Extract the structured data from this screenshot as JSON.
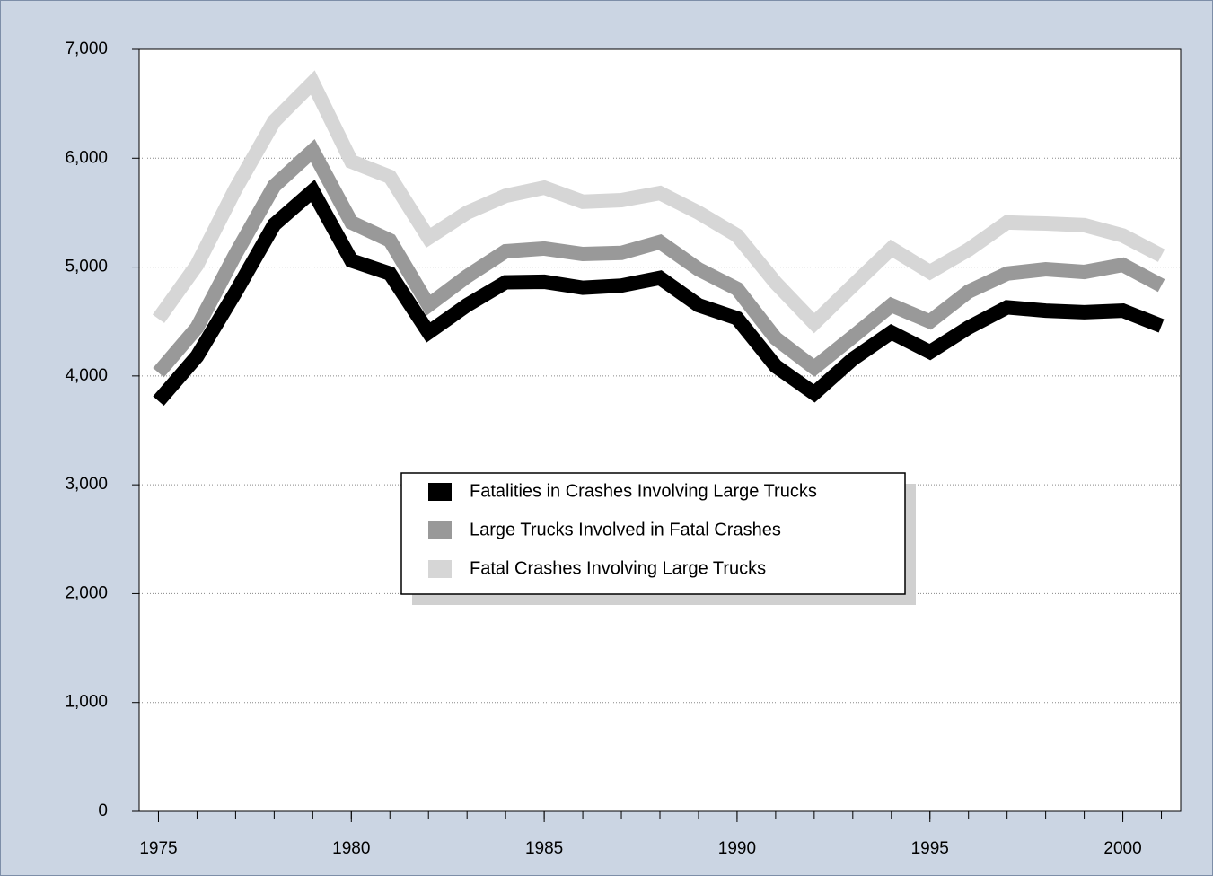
{
  "chart_data": {
    "type": "line",
    "x": [
      1975,
      1976,
      1977,
      1978,
      1979,
      1980,
      1981,
      1982,
      1983,
      1984,
      1985,
      1986,
      1987,
      1988,
      1989,
      1990,
      1991,
      1992,
      1993,
      1994,
      1995,
      1996,
      1997,
      1998,
      1999,
      2000,
      2001
    ],
    "series": [
      {
        "name": "Fatalities in Crashes Involving Large Trucks",
        "color": "#000000",
        "values": [
          3770,
          4180,
          4770,
          5390,
          5700,
          5060,
          4940,
          4400,
          4650,
          4860,
          4865,
          4810,
          4830,
          4900,
          4650,
          4530,
          4090,
          3840,
          4155,
          4400,
          4220,
          4445,
          4630,
          4600,
          4585,
          4600,
          4460
        ]
      },
      {
        "name": "Large Trucks Involved in Fatal Crashes",
        "color": "#999999",
        "values": [
          4030,
          4445,
          5120,
          5745,
          6070,
          5410,
          5245,
          4650,
          4915,
          5145,
          5170,
          5120,
          5130,
          5230,
          4980,
          4800,
          4345,
          4075,
          4360,
          4650,
          4500,
          4775,
          4940,
          4980,
          4955,
          5020,
          4830
        ]
      },
      {
        "name": "Fatal Crashes Involving Large Trucks",
        "color": "#d6d6d6",
        "values": [
          4525,
          5020,
          5720,
          6340,
          6695,
          5970,
          5830,
          5270,
          5500,
          5655,
          5730,
          5600,
          5615,
          5680,
          5500,
          5290,
          4855,
          4485,
          4830,
          5170,
          4955,
          5160,
          5410,
          5400,
          5385,
          5290,
          5105
        ]
      }
    ],
    "xlim": [
      1974.5,
      2001.5
    ],
    "xticks": [
      1975,
      1980,
      1985,
      1990,
      1995,
      2000
    ],
    "xminorticks": [
      1975,
      1976,
      1977,
      1978,
      1979,
      1980,
      1981,
      1982,
      1983,
      1984,
      1985,
      1986,
      1987,
      1988,
      1989,
      1990,
      1991,
      1992,
      1993,
      1994,
      1995,
      1996,
      1997,
      1998,
      1999,
      2000,
      2001
    ],
    "ylim": [
      0,
      7000
    ],
    "yticks": [
      0,
      {
        "value": 1000,
        "label": "1,000"
      },
      {
        "value": 2000,
        "label": "2,000"
      },
      {
        "value": 3000,
        "label": "3,000"
      },
      {
        "value": 4000,
        "label": "4,000"
      },
      {
        "value": 5000,
        "label": "5,000"
      },
      {
        "value": 6000,
        "label": "6,000"
      },
      {
        "value": 7000,
        "label": "7,000"
      }
    ],
    "grid": true
  }
}
